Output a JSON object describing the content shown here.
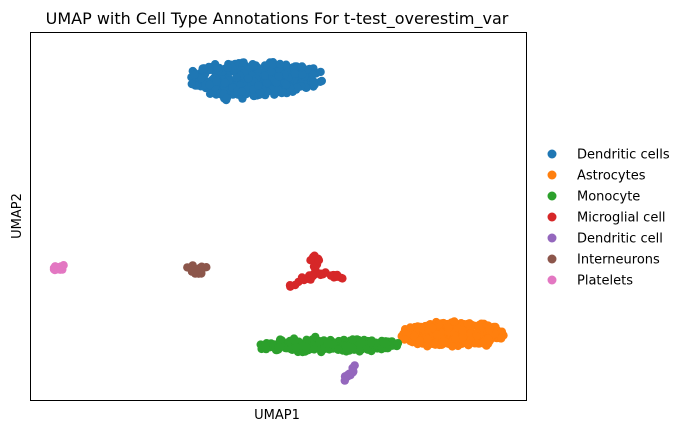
{
  "chart_data": {
    "type": "scatter",
    "title": "UMAP with Cell Type Annotations For t-test_overestim_var",
    "xlabel": "UMAP1",
    "ylabel": "UMAP2",
    "xlim": [
      0,
      100
    ],
    "ylim": [
      0,
      100
    ],
    "grid": false,
    "ticks_shown": false,
    "legend_position": "right-outside",
    "series": [
      {
        "name": "Dendritic cells",
        "color": "#1f77b4",
        "clusters": [
          {
            "type": "ellipse",
            "cx": 45.5,
            "cy": 87.5,
            "rx": 13.5,
            "ry": 4.5,
            "n": 380
          },
          {
            "type": "ellipse",
            "cx": 41,
            "cy": 85,
            "rx": 6,
            "ry": 3.5,
            "n": 60
          }
        ]
      },
      {
        "name": "Astrocytes",
        "color": "#ff7f0e",
        "clusters": [
          {
            "type": "ellipse",
            "cx": 85,
            "cy": 18,
            "rx": 10.5,
            "ry": 3.3,
            "n": 300
          }
        ]
      },
      {
        "name": "Monocyte",
        "color": "#2ca02c",
        "clusters": [
          {
            "type": "ellipse",
            "cx": 60,
            "cy": 15,
            "rx": 14.5,
            "ry": 1.8,
            "n": 190
          }
        ]
      },
      {
        "name": "Microglial cell",
        "color": "#d62728",
        "clusters": [
          {
            "type": "line",
            "x0": 57.5,
            "y0": 39.5,
            "x1": 57.5,
            "y1": 34.5,
            "n": 20
          },
          {
            "type": "line",
            "x0": 57.5,
            "y0": 34.5,
            "x1": 52,
            "y1": 31,
            "n": 16
          },
          {
            "type": "line",
            "x0": 57.5,
            "y0": 34.5,
            "x1": 63,
            "y1": 33.5,
            "n": 14
          }
        ]
      },
      {
        "name": "Dendritic cell",
        "color": "#9467bd",
        "clusters": [
          {
            "type": "line",
            "x0": 63,
            "y0": 5.5,
            "x1": 65.5,
            "y1": 9.5,
            "n": 14
          }
        ]
      },
      {
        "name": "Interneurons",
        "color": "#8c564b",
        "clusters": [
          {
            "type": "ellipse",
            "cx": 33.5,
            "cy": 35.5,
            "rx": 2,
            "ry": 1.1,
            "n": 22
          }
        ]
      },
      {
        "name": "Platelets",
        "color": "#e377c2",
        "clusters": [
          {
            "type": "ellipse",
            "cx": 5.5,
            "cy": 36,
            "rx": 1.3,
            "ry": 0.8,
            "n": 14
          }
        ]
      }
    ]
  }
}
